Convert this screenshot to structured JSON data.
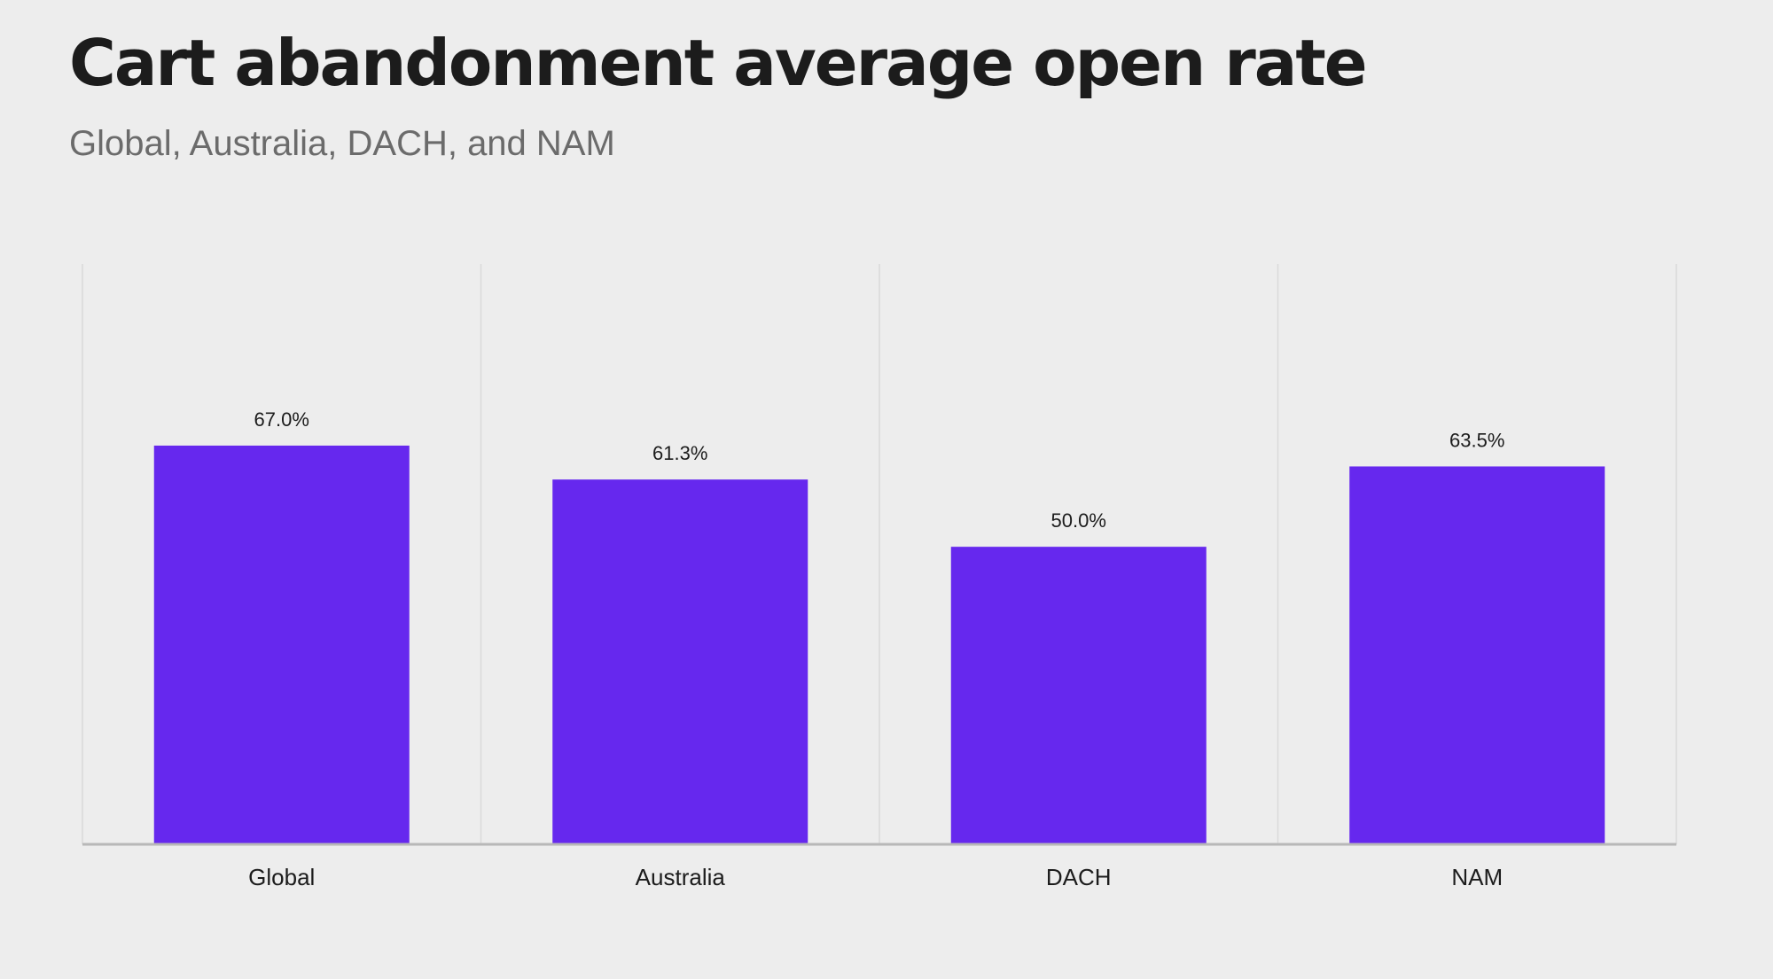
{
  "chart_data": {
    "type": "bar",
    "title": "Cart abandonment average open rate",
    "subtitle": "Global, Australia, DACH, and NAM",
    "categories": [
      "Global",
      "Australia",
      "DACH",
      "NAM"
    ],
    "values": [
      67.0,
      61.3,
      50.0,
      63.5
    ],
    "value_labels": [
      "67.0%",
      "61.3%",
      "50.0%",
      "63.5%"
    ],
    "unit": "%",
    "ylim": [
      0,
      80
    ],
    "grid": "vertical category separators",
    "bar_color": "#6628ee",
    "axis_color": "#b8b8b8",
    "grid_color": "#dadada"
  }
}
